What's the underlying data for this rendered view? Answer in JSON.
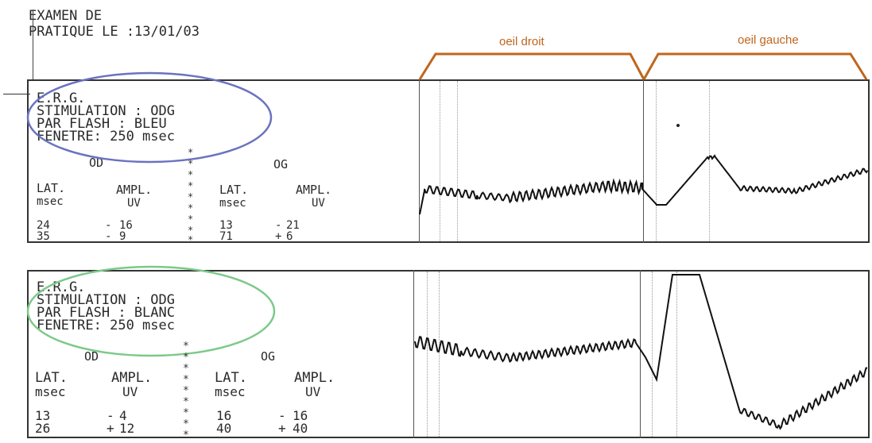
{
  "header": {
    "line1": "EXAMEN DE",
    "line2": "PRATIQUE LE :13/01/03"
  },
  "eye_labels": {
    "right": "oeil droit",
    "left": "oeil gauche"
  },
  "colors": {
    "bracket": "#c0651c",
    "blue_oval": "#6b72c0",
    "green_oval": "#7cc98a",
    "trace": "#111111"
  },
  "panels": [
    {
      "erg": "E.R.G.",
      "stim": "STIMULATION : ODG",
      "flash": "PAR FLASH : BLEU",
      "window": "FENETRE: 250 msec",
      "od": "OD",
      "og": "OG",
      "lat": "LAT.",
      "msec": "msec",
      "ampl": "AMPL.",
      "uv": "UV",
      "od_rows": [
        {
          "lat": "24",
          "sign": "-",
          "ampl": "16"
        },
        {
          "lat": "35",
          "sign": "-",
          "ampl": "9"
        }
      ],
      "og_rows": [
        {
          "lat": "13",
          "sign": "-",
          "ampl": "21"
        },
        {
          "lat": "71",
          "sign": "+",
          "ampl": "6"
        }
      ]
    },
    {
      "erg": "E.R.G.",
      "stim": "STIMULATION : ODG",
      "flash": "PAR FLASH : BLANC",
      "window": "FENETRE: 250 msec",
      "od": "OD",
      "og": "OG",
      "lat": "LAT.",
      "msec": "msec",
      "ampl": "AMPL.",
      "uv": "UV",
      "od_rows": [
        {
          "lat": "13",
          "sign": "-",
          "ampl": "4"
        },
        {
          "lat": "26",
          "sign": "+",
          "ampl": "12"
        }
      ],
      "og_rows": [
        {
          "lat": "16",
          "sign": "-",
          "ampl": "16"
        },
        {
          "lat": "40",
          "sign": "+",
          "ampl": "40"
        }
      ]
    }
  ]
}
